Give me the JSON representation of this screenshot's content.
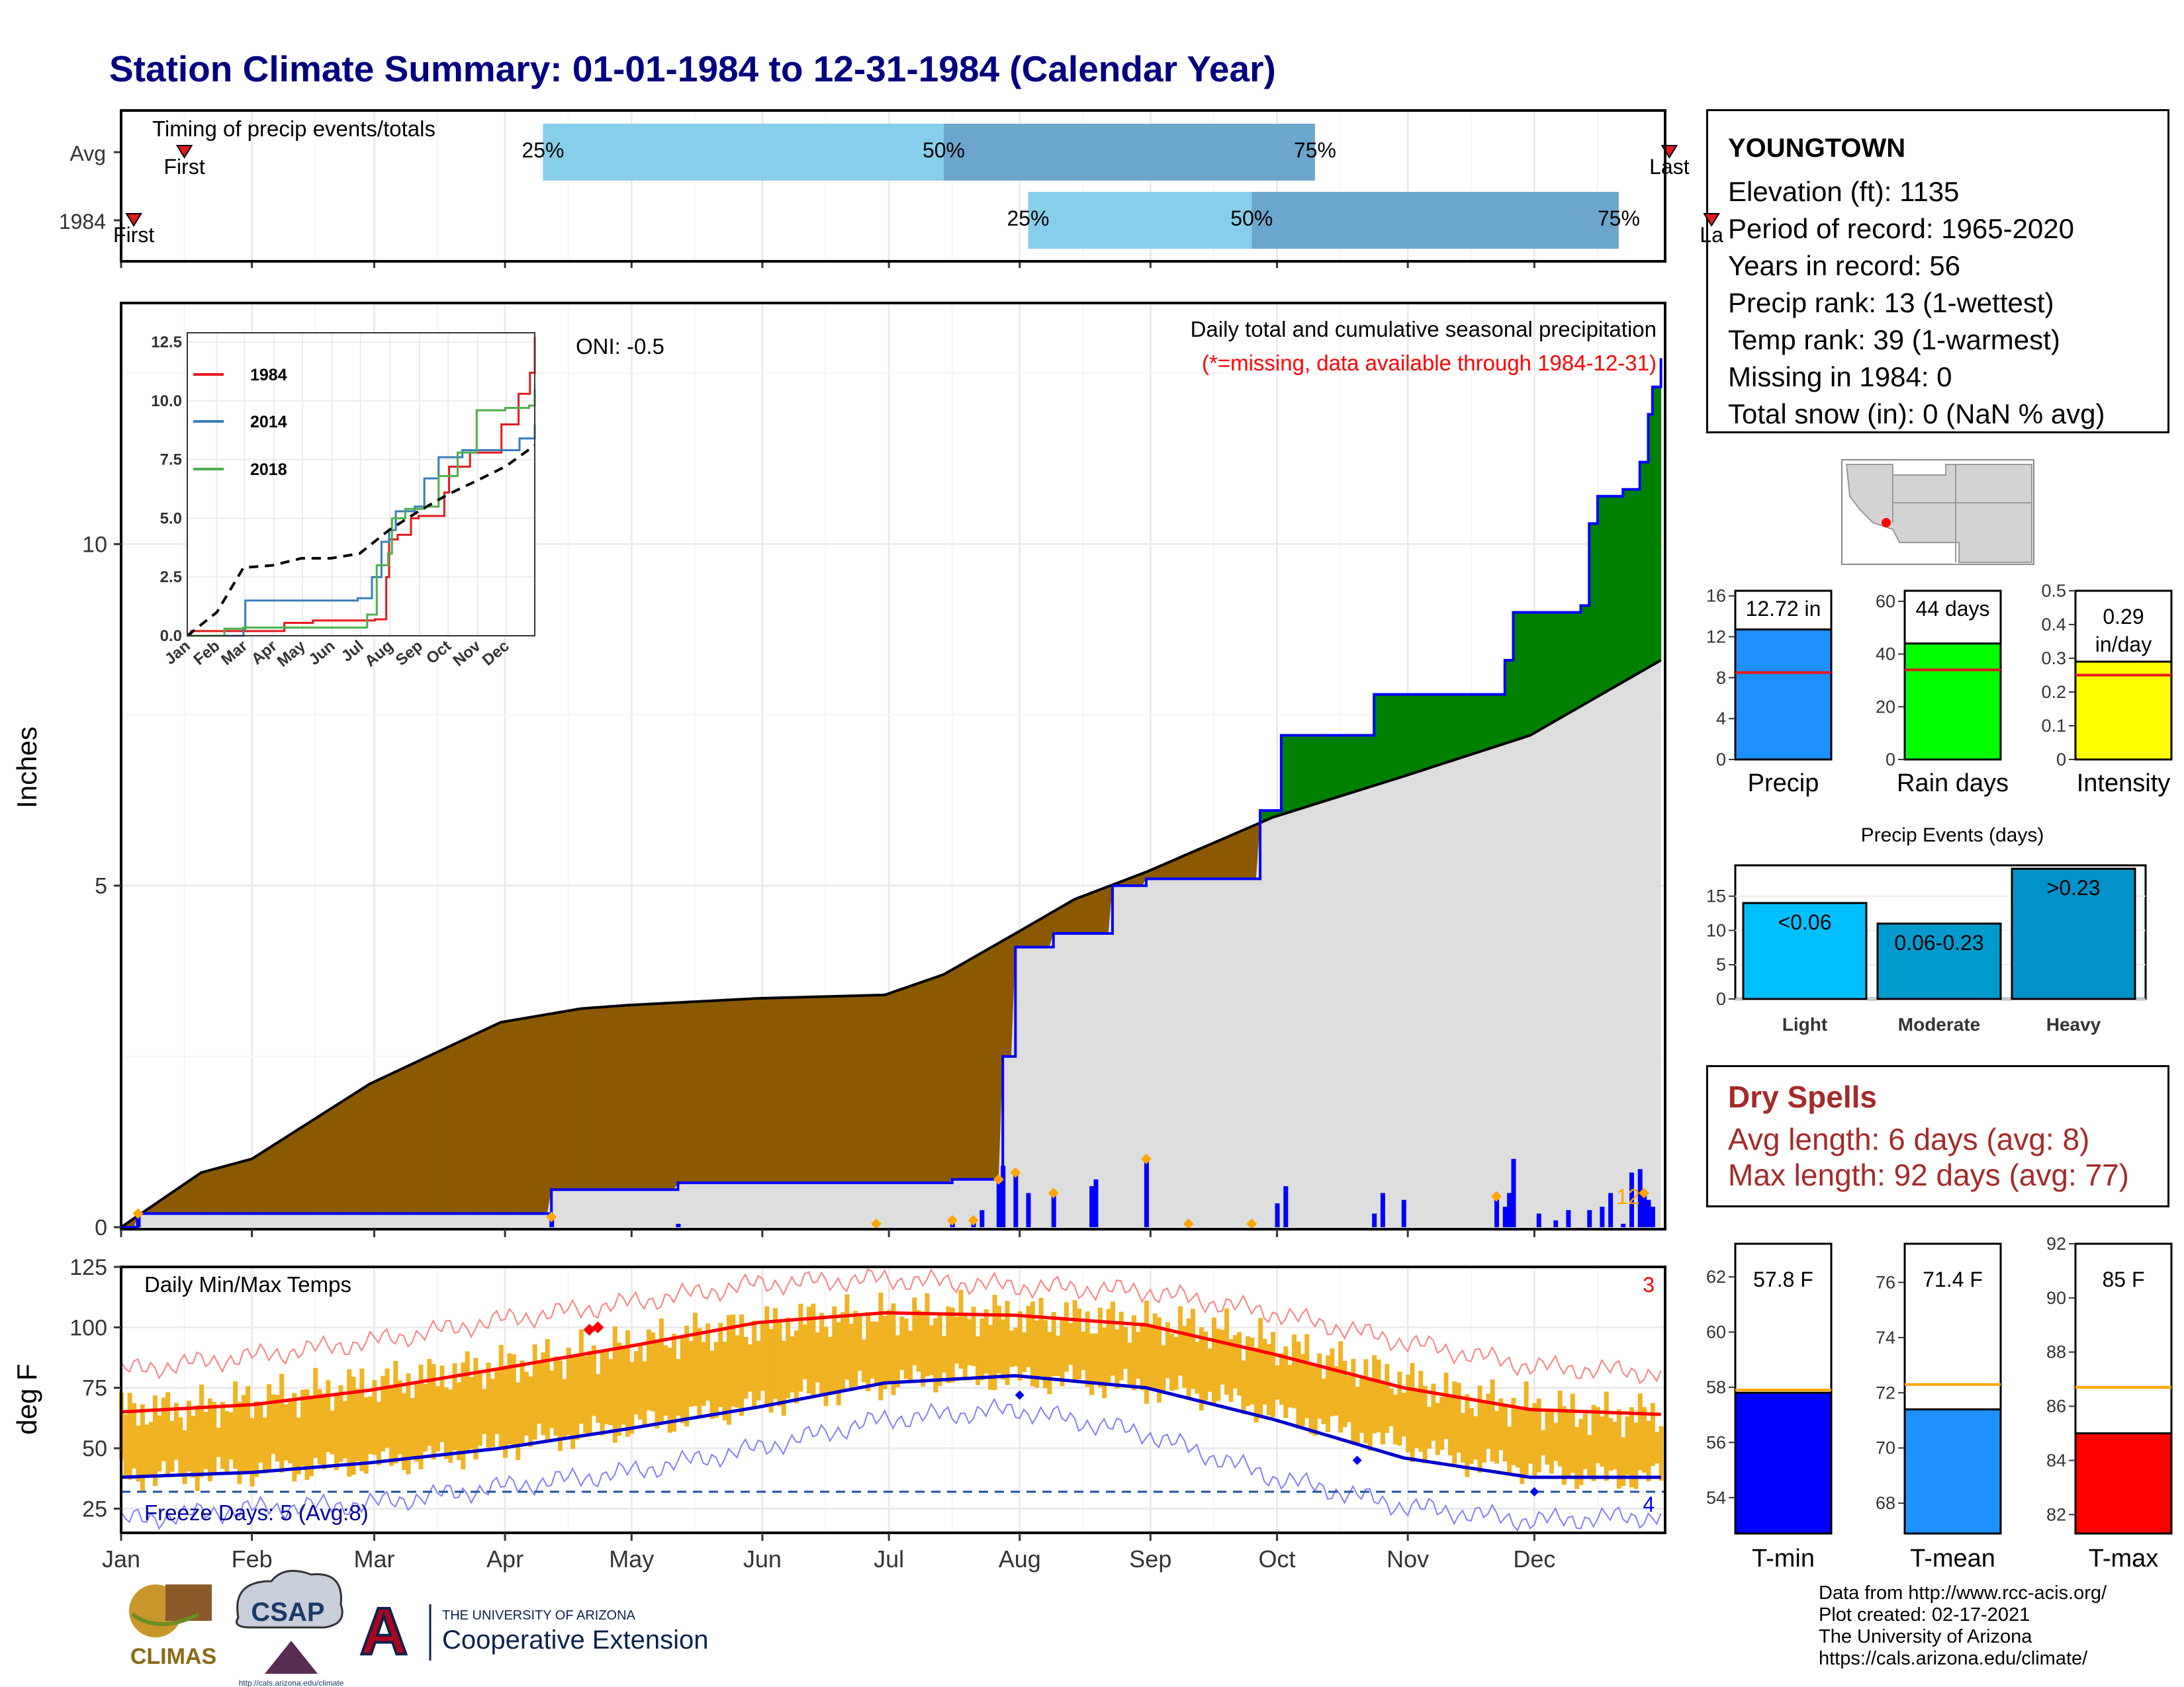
{
  "title": "Station Climate Summary: 01-01-1984 to 12-31-1984 (Calendar Year)",
  "station": {
    "name": "YOUNGTOWN",
    "lines": [
      "Elevation (ft): 1135",
      "Period of record: 1965-2020",
      "Years in record: 56",
      "Precip rank: 13 (1-wettest)",
      "Temp rank: 39 (1-warmest)",
      "Missing in 1984: 0",
      "Total snow (in): 0 (NaN % avg)"
    ]
  },
  "dry_spells": {
    "title": "Dry Spells",
    "avg": "Avg length: 6 days (avg: 8)",
    "max": "Max length: 92 days (avg: 77)"
  },
  "footer": [
    "Data from http://www.rcc-acis.org/",
    "Plot created: 02-17-2021",
    "The University of Arizona",
    "https://cals.arizona.edu/climate/"
  ],
  "logos": {
    "climas": "CLIMAS",
    "csap": "CSAP",
    "csap_url": "http://cals.arizona.edu/climate",
    "ua_small": "THE UNIVERSITY OF ARIZONA",
    "ua_big": "Cooperative Extension",
    "ua_letter": "A"
  },
  "colors": {
    "dry_deficit": "#8B5A00",
    "wet_surplus": "#008000",
    "avg_fill": "#DEDEDE",
    "cumulative_line": "#0000FF",
    "q_light": "#87CEEB",
    "q_dark": "#6CA6CD",
    "temp_bar": "#F0B323",
    "tmax_avg": "#FF0000",
    "tmin_avg": "#0000CD"
  },
  "chart_data": [
    {
      "type": "bar",
      "id": "timing",
      "title": "Timing of precip events/totals",
      "categories": [
        "Avg",
        "1984"
      ],
      "months": [
        "Jan",
        "Feb",
        "Mar",
        "Apr",
        "May",
        "Jun",
        "Jul",
        "Aug",
        "Sep",
        "Oct",
        "Nov",
        "Dec"
      ],
      "rows": [
        {
          "name": "Avg",
          "q25_day": 101,
          "q50_day": 196,
          "q75_day": 284,
          "first_day": 16,
          "last_day": 368,
          "labels": [
            "25%",
            "50%",
            "75%"
          ],
          "first_label": "First",
          "last_label": "Last"
        },
        {
          "name": "1984",
          "q25_day": 216,
          "q50_day": 269,
          "q75_day": 356,
          "first_day": 4,
          "last_day": 378,
          "labels": [
            "25%",
            "50%",
            "75%"
          ],
          "first_label": "First",
          "last_label": "La"
        }
      ]
    },
    {
      "type": "area",
      "id": "precip",
      "title": "Daily total and cumulative seasonal precipitation",
      "subtitle": "(*=missing, data available through 1984-12-31)",
      "oni": "ONI: -0.5",
      "ylabel": "Inches",
      "ylim": [
        0,
        13.5
      ],
      "yticks": [
        0,
        5,
        10
      ],
      "xticks": [
        "Jan",
        "Feb",
        "Mar",
        "Apr",
        "May",
        "Jun",
        "Jul",
        "Aug",
        "Sep",
        "Oct",
        "Nov",
        "Dec"
      ],
      "corner_count": "12",
      "average_cumulative": {
        "day": [
          1,
          20,
          32,
          60,
          91,
          110,
          121,
          152,
          182,
          196,
          213,
          227,
          244,
          274,
          305,
          335,
          366
        ],
        "inches": [
          0.0,
          0.8,
          1.0,
          2.1,
          3.0,
          3.2,
          3.25,
          3.35,
          3.4,
          3.7,
          4.3,
          4.8,
          5.2,
          6.0,
          6.6,
          7.2,
          8.3
        ]
      },
      "cumulative_1984": {
        "day": [
          1,
          5,
          103,
          133,
          198,
          210,
          213,
          222,
          236,
          244,
          271,
          276,
          298,
          327,
          329,
          331,
          347,
          349,
          351,
          354,
          357,
          361,
          363,
          364,
          366
        ],
        "inches": [
          0.0,
          0.2,
          0.55,
          0.65,
          0.7,
          2.5,
          4.1,
          4.3,
          5.0,
          5.1,
          6.1,
          7.2,
          7.8,
          7.8,
          8.3,
          9.0,
          9.1,
          10.3,
          10.7,
          10.7,
          10.8,
          11.2,
          11.9,
          12.3,
          12.72
        ]
      },
      "daily_bars": {
        "day": [
          5,
          103,
          133,
          198,
          203,
          205,
          209,
          210,
          213,
          216,
          222,
          231,
          232,
          244,
          275,
          277,
          298,
          300,
          305,
          327,
          329,
          330,
          331,
          337,
          341,
          344,
          349,
          352,
          354,
          357,
          359,
          361,
          362,
          363,
          364
        ],
        "inches": [
          0.2,
          0.15,
          0.05,
          0.1,
          0.1,
          0.25,
          0.7,
          0.9,
          0.8,
          0.5,
          0.5,
          0.6,
          0.7,
          1.0,
          0.35,
          0.6,
          0.2,
          0.5,
          0.4,
          0.45,
          0.3,
          0.5,
          1.0,
          0.2,
          0.1,
          0.25,
          0.25,
          0.3,
          0.5,
          0.05,
          0.8,
          0.85,
          0.5,
          0.4,
          0.3
        ]
      },
      "event_markers_day": [
        5,
        103,
        180,
        198,
        203,
        209,
        213,
        222,
        244,
        254,
        269,
        327,
        362
      ]
    },
    {
      "type": "line",
      "id": "inset",
      "x": "month",
      "xticks": [
        "Jan",
        "Feb",
        "Mar",
        "Apr",
        "May",
        "Jun",
        "Jul",
        "Aug",
        "Sep",
        "Oct",
        "Nov",
        "Dec"
      ],
      "ylim": [
        0,
        12.5
      ],
      "yticks": [
        0.0,
        2.5,
        5.0,
        7.5,
        10.0,
        12.5
      ],
      "series": [
        {
          "name": "1984",
          "color": "#E41A1C",
          "day": [
            1,
            5,
            103,
            133,
            198,
            210,
            213,
            222,
            236,
            244,
            271,
            276,
            298,
            327,
            331,
            349,
            361,
            366
          ],
          "values": [
            0.0,
            0.2,
            0.55,
            0.65,
            0.7,
            2.5,
            4.1,
            4.3,
            5.0,
            5.1,
            6.1,
            7.2,
            7.8,
            7.8,
            9.0,
            10.3,
            11.2,
            12.72
          ]
        },
        {
          "name": "2014",
          "color": "#377EB8",
          "day": [
            1,
            60,
            62,
            180,
            195,
            205,
            213,
            220,
            240,
            250,
            265,
            290,
            350,
            366
          ],
          "values": [
            0.0,
            0.3,
            1.5,
            1.6,
            2.5,
            4.0,
            4.5,
            5.3,
            5.5,
            6.7,
            7.6,
            7.9,
            8.4,
            9.0
          ]
        },
        {
          "name": "2018",
          "color": "#4DAF4A",
          "day": [
            1,
            40,
            60,
            190,
            200,
            212,
            216,
            230,
            250,
            265,
            285,
            305,
            335,
            360,
            366
          ],
          "values": [
            0.0,
            0.3,
            0.35,
            0.9,
            3.0,
            3.5,
            5.0,
            5.4,
            5.5,
            6.8,
            7.8,
            9.6,
            9.7,
            9.8,
            10.5
          ]
        },
        {
          "name": "Avg",
          "color": "#000000",
          "day": [
            1,
            32,
            60,
            91,
            121,
            152,
            182,
            213,
            244,
            274,
            305,
            335,
            366
          ],
          "values": [
            0.0,
            1.0,
            2.9,
            3.0,
            3.3,
            3.3,
            3.5,
            4.5,
            5.3,
            6.0,
            6.6,
            7.2,
            8.1
          ]
        }
      ]
    },
    {
      "type": "line",
      "id": "temps",
      "title": "Daily Min/Max Temps",
      "ylabel": "deg F",
      "ylim": [
        15,
        125
      ],
      "yticks": [
        25,
        50,
        75,
        100,
        125
      ],
      "xticks": [
        "Jan",
        "Feb",
        "Mar",
        "Apr",
        "May",
        "Jun",
        "Jul",
        "Aug",
        "Sep",
        "Oct",
        "Nov",
        "Dec"
      ],
      "freeze_label": "Freeze Days: 5 (Avg:8)",
      "freeze_line": 32,
      "record_high_count": "3",
      "record_low_count": "4",
      "monthly_mid_day": [
        16,
        45,
        75,
        106,
        136,
        167,
        197,
        228,
        259,
        289,
        320,
        350
      ],
      "tmax_monthly_1984": [
        66,
        73,
        80,
        88,
        97,
        104,
        106,
        104,
        100,
        86,
        71,
        64
      ],
      "tmin_monthly_1984": [
        39,
        42,
        46,
        55,
        63,
        73,
        80,
        78,
        72,
        58,
        45,
        38
      ],
      "avg_tmax": {
        "day": [
          1,
          32,
          60,
          91,
          121,
          152,
          182,
          213,
          244,
          274,
          305,
          335,
          366
        ],
        "values": [
          65,
          68,
          74,
          83,
          92,
          102,
          106,
          105,
          101,
          89,
          75,
          66,
          64
        ]
      },
      "avg_tmin": {
        "day": [
          1,
          32,
          60,
          91,
          121,
          152,
          182,
          213,
          244,
          274,
          305,
          335,
          366
        ],
        "values": [
          38,
          40,
          44,
          50,
          58,
          67,
          77,
          80,
          75,
          62,
          46,
          38,
          38
        ]
      },
      "rec_high": {
        "day": [
          1,
          32,
          60,
          91,
          121,
          152,
          182,
          213,
          244,
          274,
          305,
          335,
          366
        ],
        "values": [
          82,
          88,
          94,
          103,
          110,
          118,
          120,
          117,
          115,
          106,
          94,
          84,
          81
        ]
      },
      "rec_low": {
        "day": [
          1,
          32,
          60,
          91,
          121,
          152,
          182,
          213,
          244,
          274,
          305,
          335,
          366
        ],
        "values": [
          20,
          25,
          27,
          34,
          40,
          50,
          62,
          66,
          56,
          38,
          26,
          20,
          22
        ]
      }
    },
    {
      "type": "bar",
      "id": "precip_gauges",
      "panels": [
        {
          "label": "Precip",
          "value": 12.72,
          "avg": 8.5,
          "ylim": [
            0,
            16.5
          ],
          "yticks": [
            0,
            4,
            8,
            12,
            16
          ],
          "color": "#1E90FF",
          "text": "12.72 in"
        },
        {
          "label": "Rain days",
          "value": 44,
          "avg": 34,
          "ylim": [
            0,
            64
          ],
          "yticks": [
            0,
            20,
            40,
            60
          ],
          "color": "#00FF00",
          "text": "44 days"
        },
        {
          "label": "Intensity",
          "value": 0.29,
          "avg": 0.25,
          "ylim": [
            0,
            0.5
          ],
          "yticks": [
            0.0,
            0.1,
            0.2,
            0.3,
            0.4,
            0.5
          ],
          "color": "#FFFF00",
          "text": "0.29 in/day"
        }
      ]
    },
    {
      "type": "bar",
      "id": "events",
      "title": "Precip Events (days)",
      "categories": [
        "Light",
        "Moderate",
        "Heavy"
      ],
      "labels": [
        "<0.06",
        "0.06-0.23",
        ">0.23"
      ],
      "values": [
        14,
        11,
        19
      ],
      "colors": [
        "#00BFFF",
        "#009ACD",
        "#0092C8"
      ],
      "ylim": [
        0,
        19.5
      ],
      "yticks": [
        0,
        5,
        10,
        15
      ]
    },
    {
      "type": "bar",
      "id": "temp_gauges",
      "panels": [
        {
          "label": "T-min",
          "value": 57.8,
          "avg": 57.9,
          "ylim": [
            52.7,
            63.2
          ],
          "yticks": [
            54,
            56,
            58,
            60,
            62
          ],
          "color": "#0000FF",
          "text": "57.8 F"
        },
        {
          "label": "T-mean",
          "value": 71.4,
          "avg": 72.3,
          "ylim": [
            66.9,
            77.4
          ],
          "yticks": [
            68,
            70,
            72,
            74,
            76
          ],
          "color": "#1E90FF",
          "text": "71.4 F"
        },
        {
          "label": "T-max",
          "value": 85,
          "avg": 86.7,
          "ylim": [
            81.3,
            92
          ],
          "yticks": [
            82,
            84,
            86,
            88,
            90,
            92
          ],
          "color": "#FF0000",
          "text": "85 F"
        }
      ]
    }
  ]
}
